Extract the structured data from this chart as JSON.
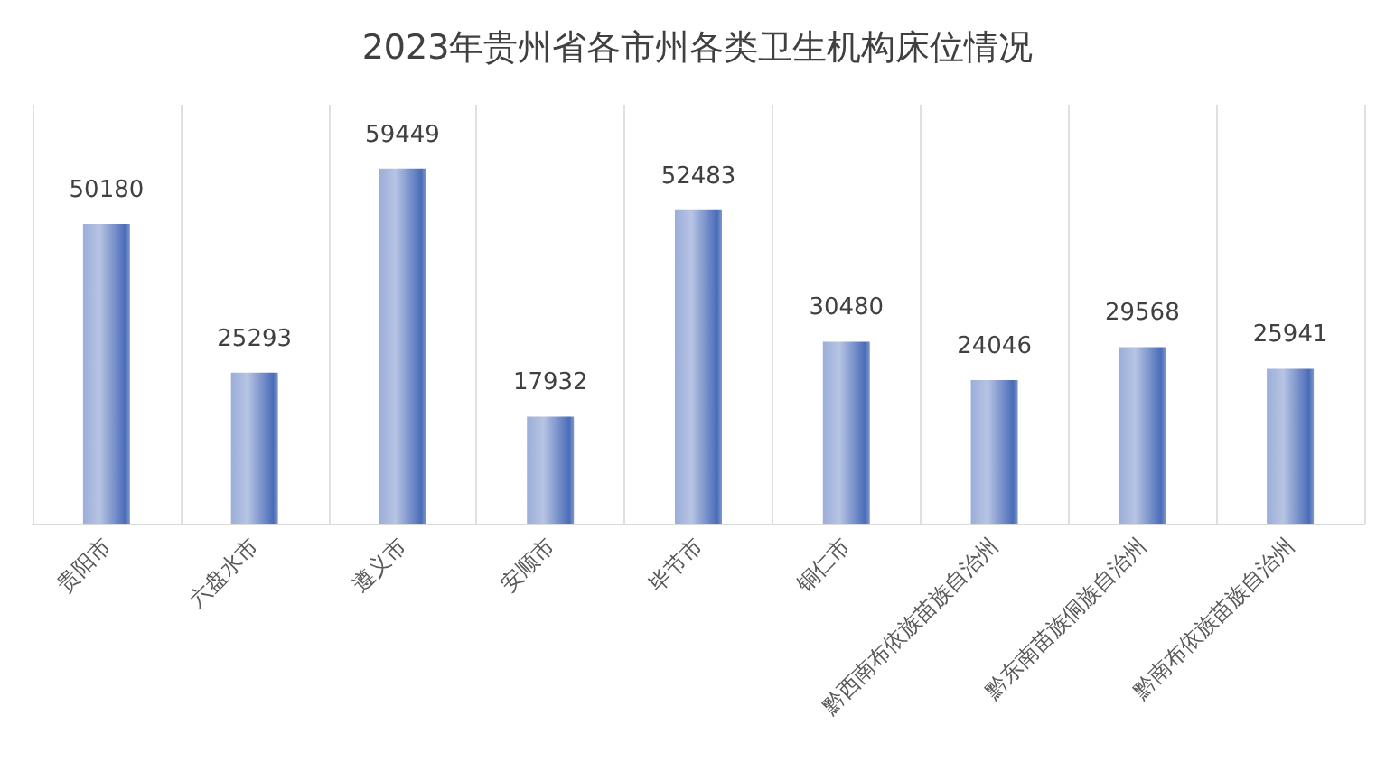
{
  "chart_data": {
    "type": "bar",
    "title": "2023年贵州省各市州各类卫生机构床位情况",
    "categories": [
      "贵阳市",
      "六盘水市",
      "遵义市",
      "安顺市",
      "毕节市",
      "铜仁市",
      "黔西南布依族苗族自治州",
      "黔东南苗族侗族自治州",
      "黔南布依族苗族自治州"
    ],
    "values": [
      50180,
      25293,
      59449,
      17932,
      52483,
      30480,
      24046,
      29568,
      25941
    ],
    "color": "#4a6cb8",
    "data_labels": true,
    "grid": "x"
  }
}
